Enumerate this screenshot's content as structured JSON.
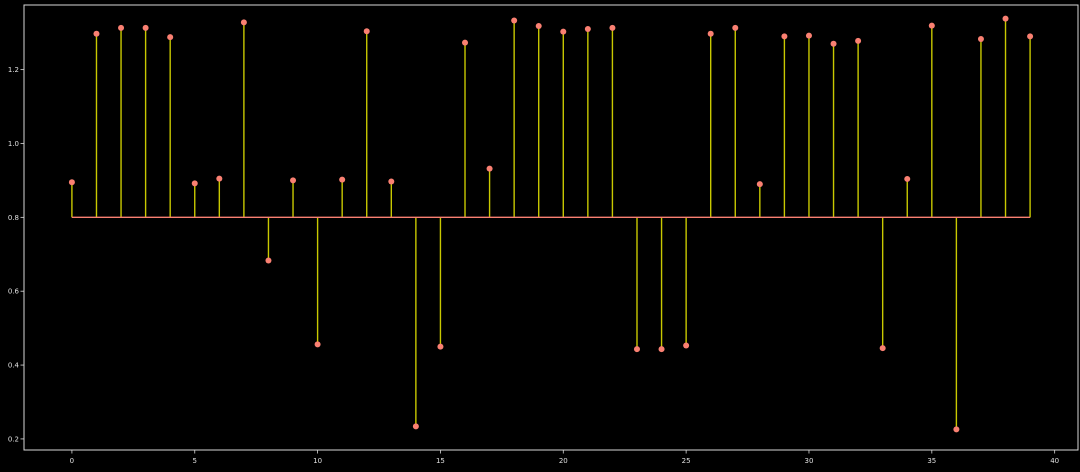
{
  "chart_data": {
    "type": "stem",
    "title": "",
    "xlabel": "",
    "ylabel": "",
    "baseline": 0.8,
    "xlim": [
      -1.95,
      40.95
    ],
    "ylim": [
      0.17,
      1.375
    ],
    "xticks": [
      0,
      5,
      10,
      15,
      20,
      25,
      30,
      35,
      40
    ],
    "yticks": [
      0.2,
      0.4,
      0.6,
      0.8,
      1.0,
      1.2
    ],
    "ytick_labels": [
      "0.2",
      "0.4",
      "0.6",
      "0.8",
      "1.0",
      "1.2"
    ],
    "grid": false,
    "legend": "none",
    "x": [
      0,
      1,
      2,
      3,
      4,
      5,
      6,
      7,
      8,
      9,
      10,
      11,
      12,
      13,
      14,
      15,
      16,
      17,
      18,
      19,
      20,
      21,
      22,
      23,
      24,
      25,
      26,
      27,
      28,
      29,
      30,
      31,
      32,
      33,
      34,
      35,
      36,
      37,
      38,
      39
    ],
    "values": [
      0.895,
      1.297,
      1.313,
      1.313,
      1.288,
      0.892,
      0.905,
      1.328,
      0.683,
      0.9,
      0.456,
      0.902,
      1.304,
      0.897,
      0.234,
      0.45,
      1.273,
      0.932,
      1.333,
      1.318,
      1.303,
      1.31,
      1.313,
      0.443,
      0.443,
      0.453,
      1.297,
      1.313,
      0.89,
      1.29,
      1.292,
      1.27,
      1.278,
      0.446,
      0.904,
      1.319,
      0.226,
      1.283,
      1.338,
      1.29
    ]
  },
  "colors": {
    "background": "#000000",
    "axes_frame": "#d9d9d9",
    "tick_label": "#e0e0e0",
    "stem_line": "#c8c800",
    "marker": "#fa8072",
    "baseline": "#fa8072"
  }
}
